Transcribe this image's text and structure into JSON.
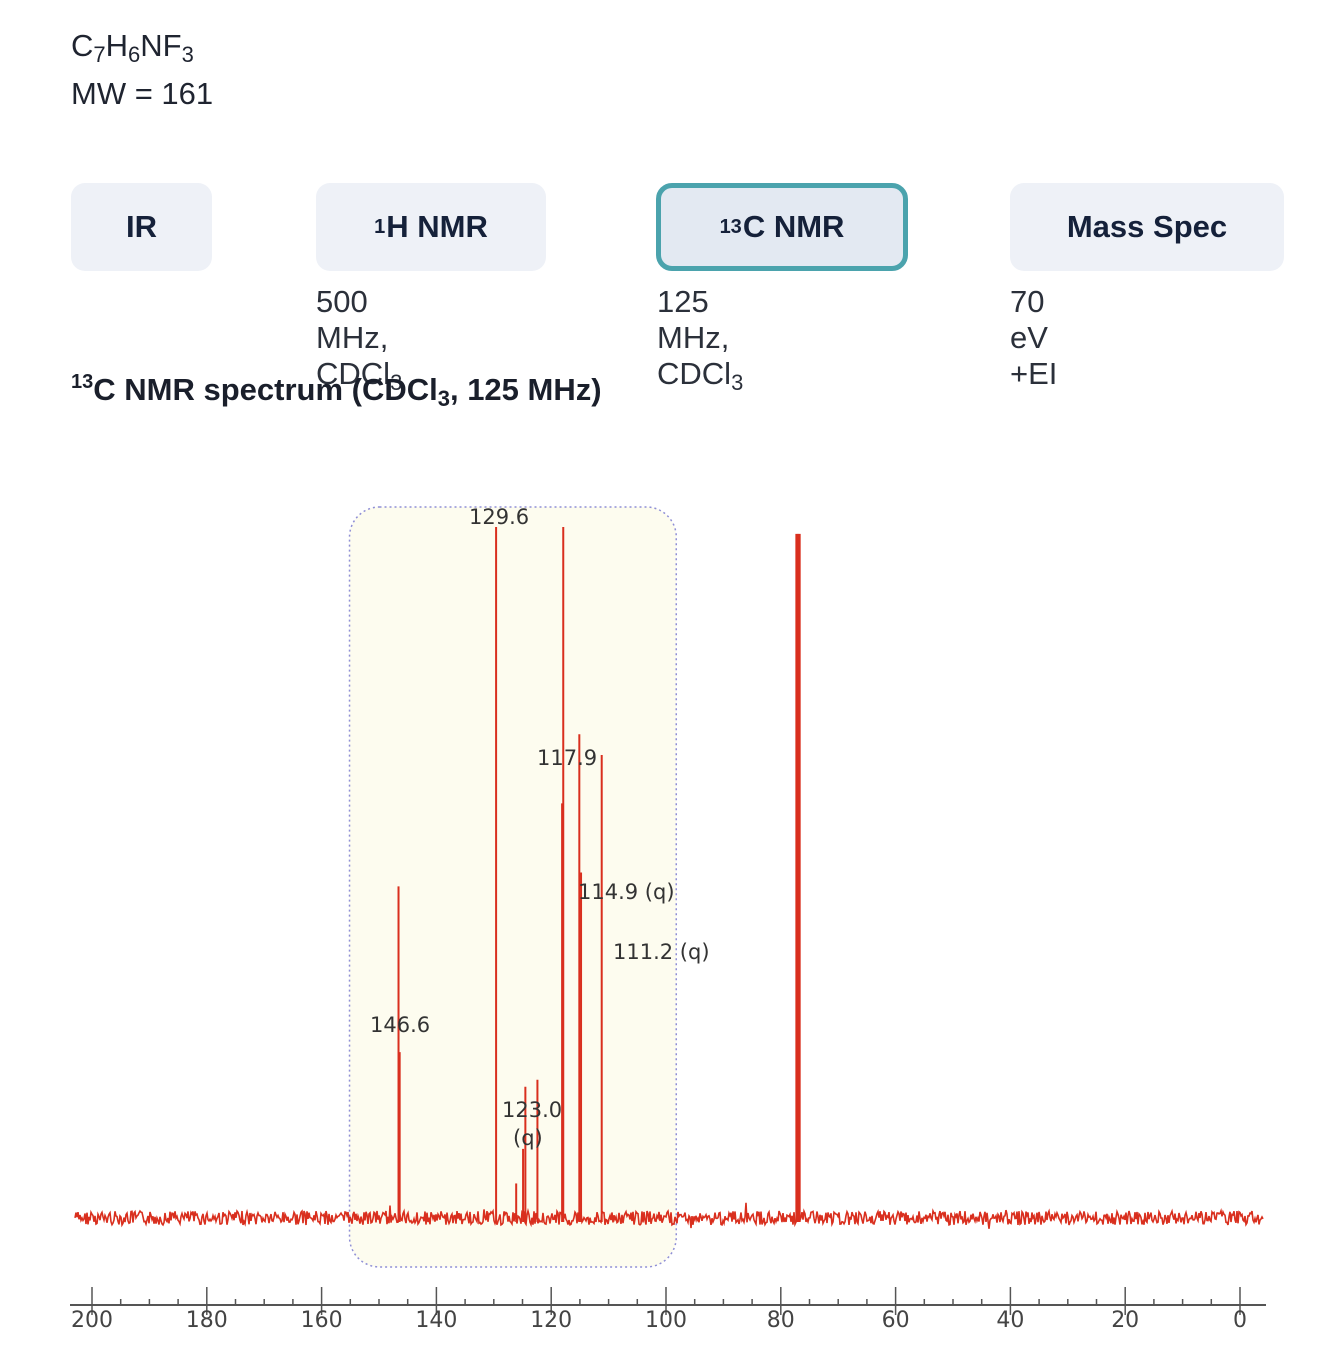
{
  "compound": {
    "formula_parts": [
      "C",
      "7",
      "H",
      "6",
      "NF",
      "3"
    ],
    "mw": "MW = 161"
  },
  "tabs": [
    {
      "id": "ir",
      "sup": "",
      "label": "IR",
      "subtitle": "",
      "subtitle_sub": "",
      "subtitle_tail": "",
      "active": false
    },
    {
      "id": "h-nmr",
      "sup": "1",
      "label": "H NMR",
      "subtitle": "500 MHz, CDCl",
      "subtitle_sub": "3",
      "subtitle_tail": "",
      "active": false
    },
    {
      "id": "c-nmr",
      "sup": "13",
      "label": "C NMR",
      "subtitle": "125 MHz, CDCl",
      "subtitle_sub": "3",
      "subtitle_tail": "",
      "active": true
    },
    {
      "id": "mass-spec",
      "sup": "",
      "label": "Mass Spec",
      "subtitle": "70 eV +EI",
      "subtitle_sub": "",
      "subtitle_tail": "",
      "active": false
    }
  ],
  "heading": {
    "sup": "13",
    "pre": "C NMR spectrum (CDCl",
    "sub": "3",
    "post": ", 125 MHz)"
  },
  "colors": {
    "spectrum": "#d92f1e",
    "highlight_fill": "#fdfcef",
    "highlight_border": "#8f8fd6",
    "active_tab_border": "#4ba3ad",
    "tab_bg": "#eef1f7"
  },
  "chart_data": {
    "type": "line",
    "x_axis": {
      "reversed": true,
      "min": 0,
      "max": 200,
      "major_ticks": [
        200,
        180,
        160,
        140,
        120,
        100,
        80,
        60,
        40,
        20,
        0
      ],
      "unit": "ppm"
    },
    "highlight_region": [
      101,
      152
    ],
    "peaks": [
      {
        "ppm": 146.6,
        "height": 0.48,
        "label": "146.6"
      },
      {
        "ppm": 146.4,
        "height": 0.24,
        "label": ""
      },
      {
        "ppm": 129.6,
        "height": 1.0,
        "label": "129.6"
      },
      {
        "ppm": 126.1,
        "height": 0.05,
        "label": ""
      },
      {
        "ppm": 124.9,
        "height": 0.1,
        "label": ""
      },
      {
        "ppm": 124.5,
        "height": 0.19,
        "label": "123.0\n(q)"
      },
      {
        "ppm": 122.4,
        "height": 0.2,
        "label": ""
      },
      {
        "ppm": 118.1,
        "height": 0.6,
        "label": ""
      },
      {
        "ppm": 117.9,
        "height": 1.0,
        "label": "117.9"
      },
      {
        "ppm": 115.1,
        "height": 0.7,
        "label": "114.9 (q)"
      },
      {
        "ppm": 114.8,
        "height": 0.5,
        "label": ""
      },
      {
        "ppm": 111.2,
        "height": 0.67,
        "label": "111.2 (q)"
      },
      {
        "ppm": 77.2,
        "height": 0.99,
        "label": ""
      },
      {
        "ppm": 76.8,
        "height": 0.99,
        "label": ""
      }
    ],
    "peak_labels": [
      {
        "text": "146.6",
        "ppm": 146.6
      },
      {
        "text": "129.6",
        "ppm": 129.6
      },
      {
        "text": "117.9",
        "ppm": 117.9
      },
      {
        "text": "114.9 (q)",
        "ppm": 114.9
      },
      {
        "text": "111.2 (q)",
        "ppm": 111.2
      },
      {
        "text": "123.0",
        "ppm": 123.0
      },
      {
        "text": "(q)",
        "ppm": 123.0
      }
    ]
  }
}
